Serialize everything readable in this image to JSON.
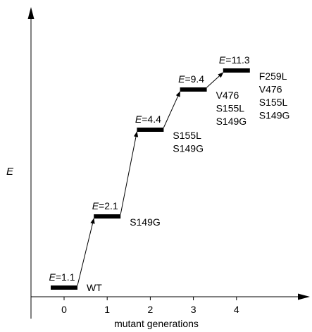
{
  "chart_data": {
    "type": "line",
    "xlabel": "mutant generations",
    "ylabel": "E",
    "xlim": [
      -0.7,
      5.0
    ],
    "ylim": [
      0,
      12.5
    ],
    "x_ticks": [
      "0",
      "1",
      "2",
      "3",
      "4"
    ],
    "levels": [
      {
        "x": 0,
        "value": 1.1,
        "label": "E=1.1",
        "mutations": [
          "WT"
        ]
      },
      {
        "x": 1,
        "value": 2.1,
        "label": "E=2.1",
        "mutations": [
          "S149G"
        ]
      },
      {
        "x": 2,
        "value": 4.4,
        "label": "E=4.4",
        "mutations": [
          "S155L",
          "S149G"
        ]
      },
      {
        "x": 3,
        "value": 9.4,
        "label": "E=9.4",
        "mutations": [
          "V476",
          "S155L",
          "S149G"
        ]
      },
      {
        "x": 4,
        "value": 11.3,
        "label": "E=11.3",
        "mutations": [
          "F259L",
          "V476",
          "S155L",
          "S149G"
        ]
      }
    ]
  }
}
